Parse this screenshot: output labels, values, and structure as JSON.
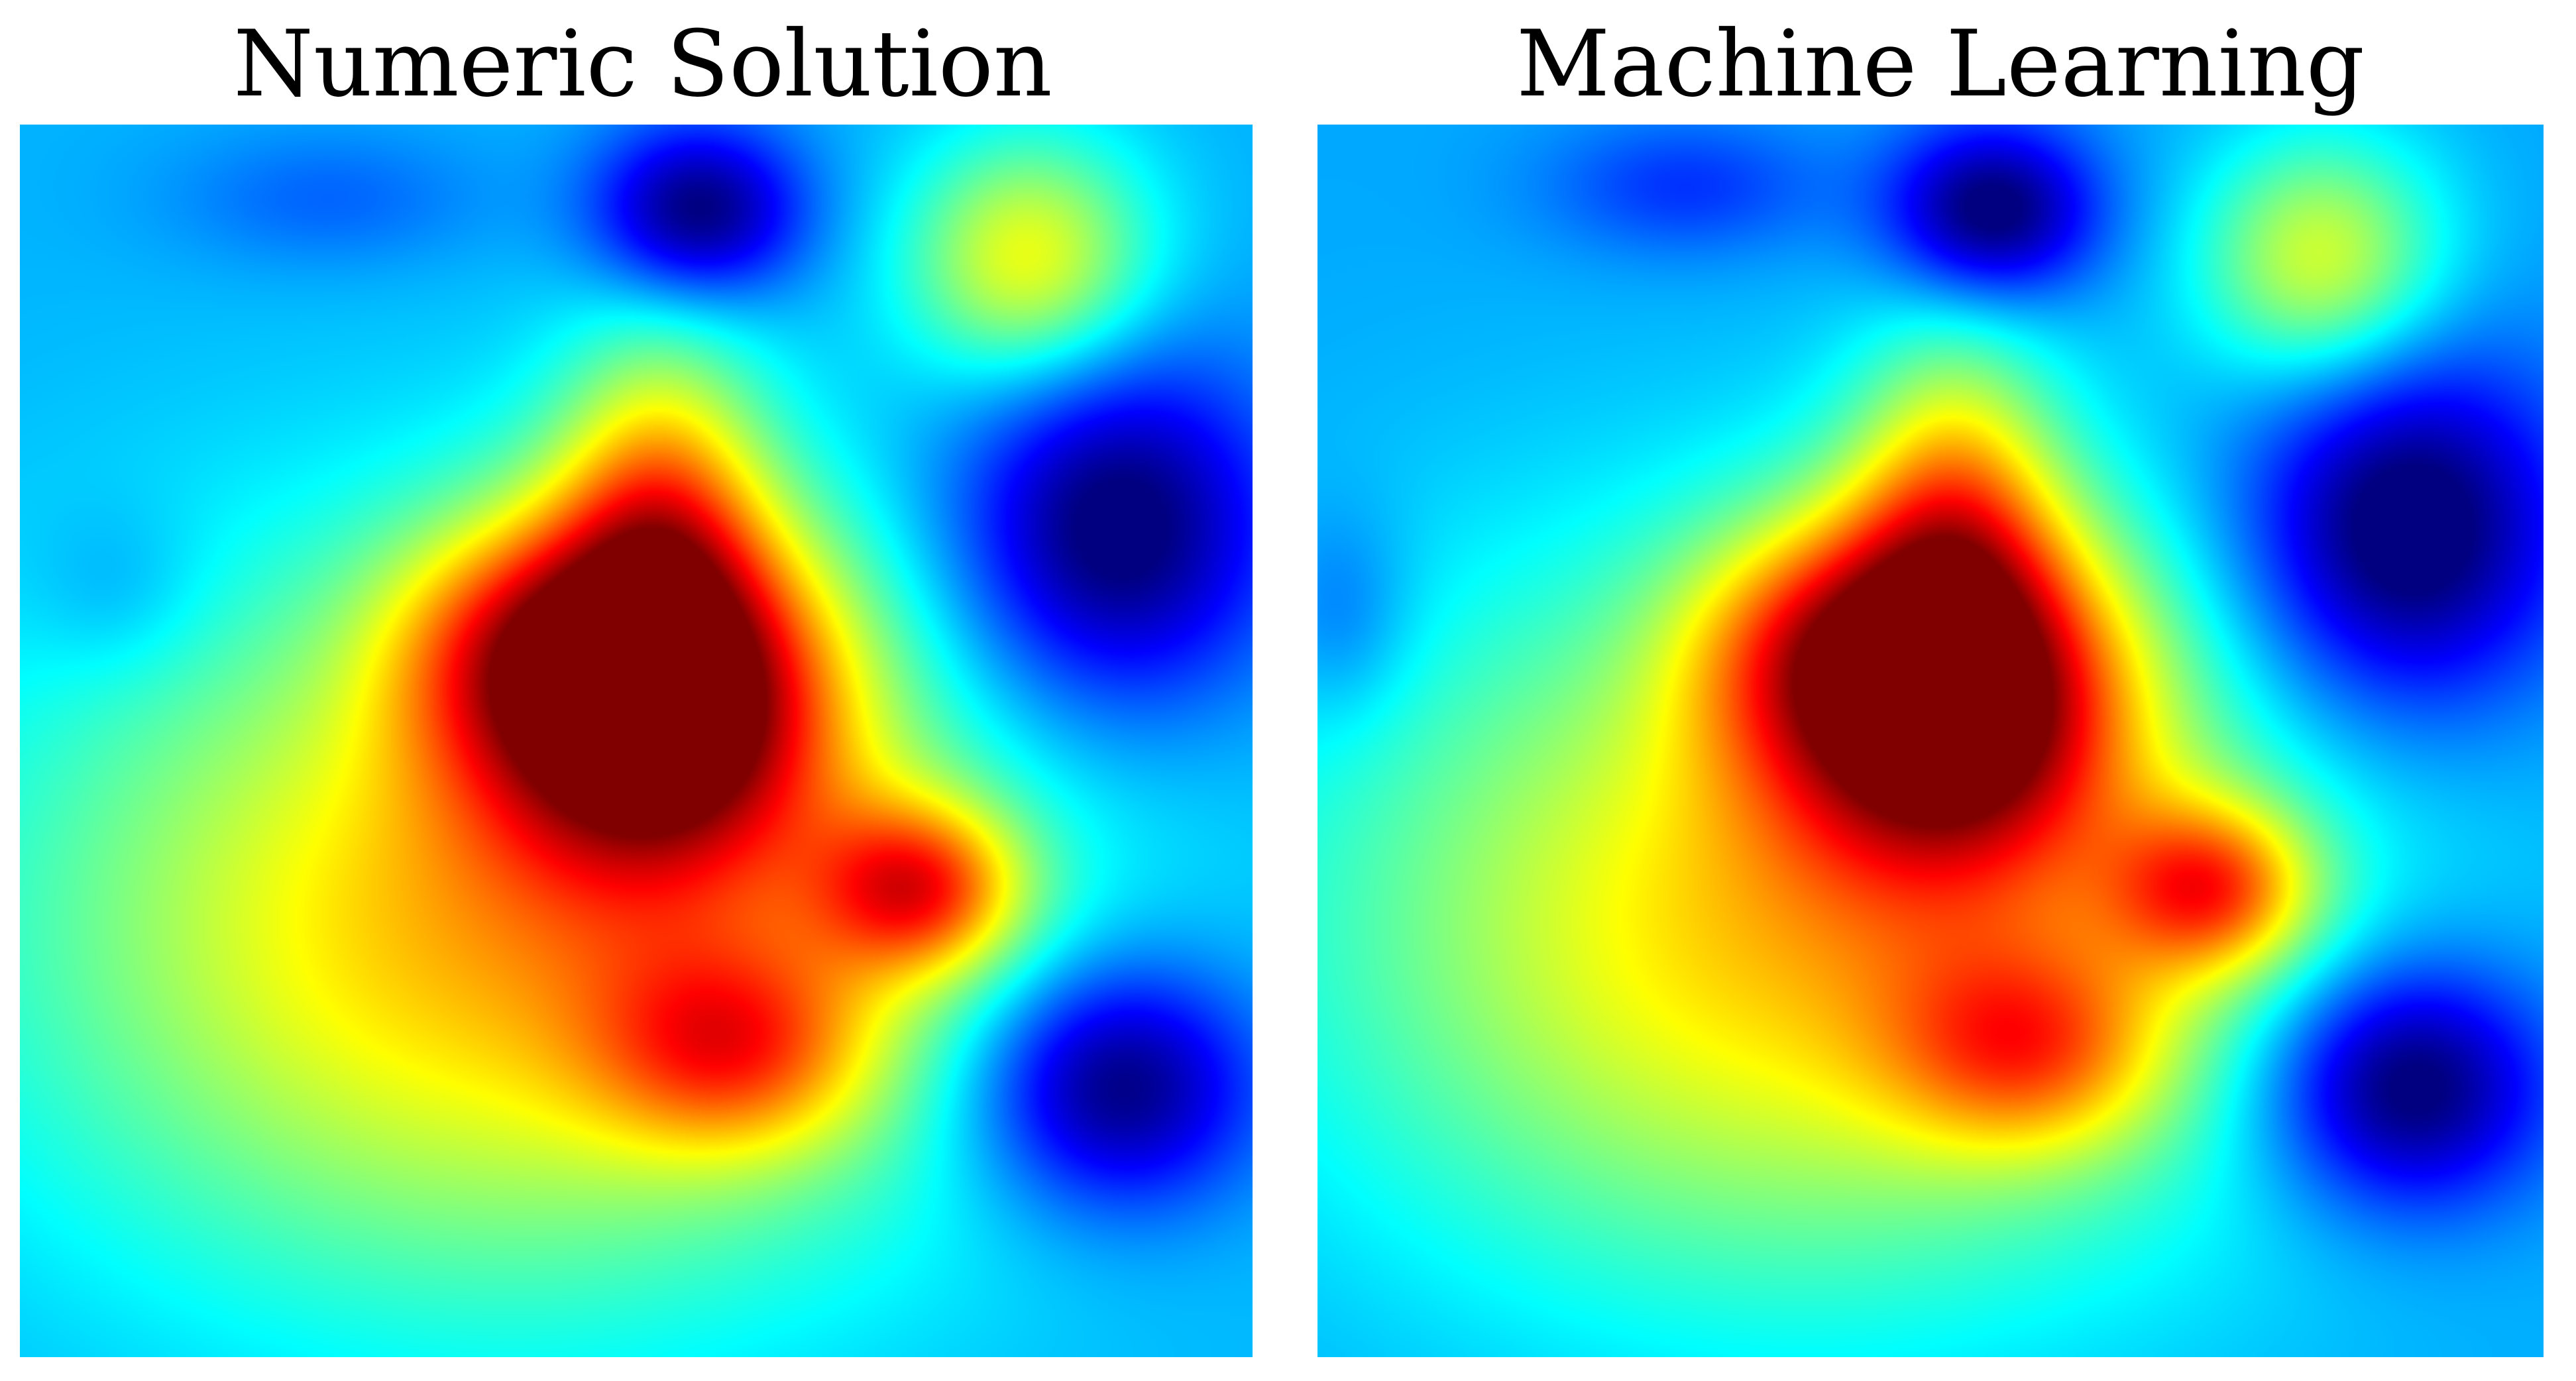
{
  "panels": [
    {
      "title": "Numeric Solution"
    },
    {
      "title": "Machine Learning"
    }
  ],
  "chart_data": [
    {
      "type": "heatmap",
      "title": "Numeric Solution",
      "colormap": "jet",
      "value_range": [
        0,
        1
      ],
      "background_level": 0.3,
      "blobs": [
        {
          "x": 0.52,
          "y": 0.46,
          "amp": 0.68,
          "sx": 0.1,
          "sy": 0.1
        },
        {
          "x": 0.52,
          "y": 0.3,
          "amp": 0.3,
          "sx": 0.06,
          "sy": 0.1
        },
        {
          "x": 0.4,
          "y": 0.42,
          "amp": 0.22,
          "sx": 0.08,
          "sy": 0.07
        },
        {
          "x": 0.73,
          "y": 0.62,
          "amp": 0.4,
          "sx": 0.06,
          "sy": 0.05
        },
        {
          "x": 0.4,
          "y": 0.65,
          "amp": 0.4,
          "sx": 0.27,
          "sy": 0.2
        },
        {
          "x": 0.58,
          "y": 0.75,
          "amp": 0.3,
          "sx": 0.08,
          "sy": 0.06
        },
        {
          "x": 0.82,
          "y": 0.11,
          "amp": 0.32,
          "sx": 0.07,
          "sy": 0.07
        },
        {
          "x": 0.55,
          "y": 0.07,
          "amp": -0.32,
          "sx": 0.06,
          "sy": 0.05
        },
        {
          "x": 0.89,
          "y": 0.33,
          "amp": -0.35,
          "sx": 0.09,
          "sy": 0.1
        },
        {
          "x": 0.89,
          "y": 0.78,
          "amp": -0.35,
          "sx": 0.08,
          "sy": 0.07
        },
        {
          "x": 0.25,
          "y": 0.06,
          "amp": -0.08,
          "sx": 0.09,
          "sy": 0.04
        },
        {
          "x": 0.08,
          "y": 0.38,
          "amp": -0.06,
          "sx": 0.05,
          "sy": 0.05
        }
      ]
    },
    {
      "type": "heatmap",
      "title": "Machine Learning",
      "colormap": "jet",
      "value_range": [
        0,
        1
      ],
      "background_level": 0.29,
      "blobs": [
        {
          "x": 0.52,
          "y": 0.46,
          "amp": 0.66,
          "sx": 0.1,
          "sy": 0.1
        },
        {
          "x": 0.52,
          "y": 0.3,
          "amp": 0.29,
          "sx": 0.06,
          "sy": 0.1
        },
        {
          "x": 0.4,
          "y": 0.42,
          "amp": 0.21,
          "sx": 0.08,
          "sy": 0.07
        },
        {
          "x": 0.73,
          "y": 0.62,
          "amp": 0.38,
          "sx": 0.06,
          "sy": 0.05
        },
        {
          "x": 0.4,
          "y": 0.65,
          "amp": 0.39,
          "sx": 0.27,
          "sy": 0.2
        },
        {
          "x": 0.58,
          "y": 0.75,
          "amp": 0.29,
          "sx": 0.08,
          "sy": 0.06
        },
        {
          "x": 0.82,
          "y": 0.11,
          "amp": 0.3,
          "sx": 0.07,
          "sy": 0.07
        },
        {
          "x": 0.55,
          "y": 0.07,
          "amp": -0.33,
          "sx": 0.06,
          "sy": 0.05
        },
        {
          "x": 0.89,
          "y": 0.33,
          "amp": -0.36,
          "sx": 0.09,
          "sy": 0.1
        },
        {
          "x": 0.89,
          "y": 0.78,
          "amp": -0.36,
          "sx": 0.08,
          "sy": 0.07
        },
        {
          "x": 0.3,
          "y": 0.05,
          "amp": -0.12,
          "sx": 0.08,
          "sy": 0.04
        },
        {
          "x": 0.02,
          "y": 0.4,
          "amp": -0.09,
          "sx": 0.04,
          "sy": 0.06
        }
      ]
    }
  ]
}
